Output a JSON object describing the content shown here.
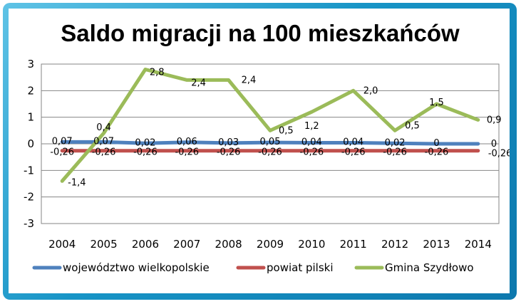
{
  "chart_data": {
    "type": "line",
    "title": "Saldo migracji na 100 mieszkańców",
    "xlabel": "",
    "ylabel": "",
    "ylim": [
      -3,
      3
    ],
    "yticks": [
      "-3",
      "-2",
      "-1",
      "0",
      "1",
      "2",
      "3"
    ],
    "categories": [
      "2004",
      "2005",
      "2006",
      "2007",
      "2008",
      "2009",
      "2010",
      "2011",
      "2012",
      "2013",
      "2014"
    ],
    "grid": true,
    "legend": "bottom",
    "series": [
      {
        "name": "województwo wielkopolskie",
        "color": "#4f81bd",
        "values": [
          0.07,
          0.07,
          0.02,
          0.06,
          0.03,
          0.05,
          0.04,
          0.04,
          0.02,
          0,
          0
        ],
        "labels": [
          "0,07",
          "0,07",
          "0,02",
          "0,06",
          "0,03",
          "0,05",
          "0,04",
          "0,04",
          "0,02",
          "0",
          "0"
        ]
      },
      {
        "name": "powiat pilski",
        "color": "#c0504d",
        "values": [
          -0.26,
          -0.26,
          -0.26,
          -0.26,
          -0.26,
          -0.26,
          -0.26,
          -0.26,
          -0.26,
          -0.26,
          -0.26
        ],
        "labels": [
          "-0,26",
          "-0,26",
          "-0,26",
          "-0,26",
          "-0,26",
          "-0,26",
          "-0,26",
          "-0,26",
          "-0,26",
          "-0,26",
          "-0,26"
        ]
      },
      {
        "name": "Gmina Szydłowo",
        "color": "#9bbb59",
        "values": [
          -1.4,
          0.4,
          2.8,
          2.4,
          2.4,
          0.5,
          1.2,
          2.0,
          0.5,
          1.5,
          0.9
        ],
        "labels": [
          "-1,4",
          "0,4",
          "2,8",
          "2,4",
          "2,4",
          "0,5",
          "1,2",
          "2,0",
          "0,5",
          "1,5",
          "0,9"
        ]
      }
    ]
  }
}
